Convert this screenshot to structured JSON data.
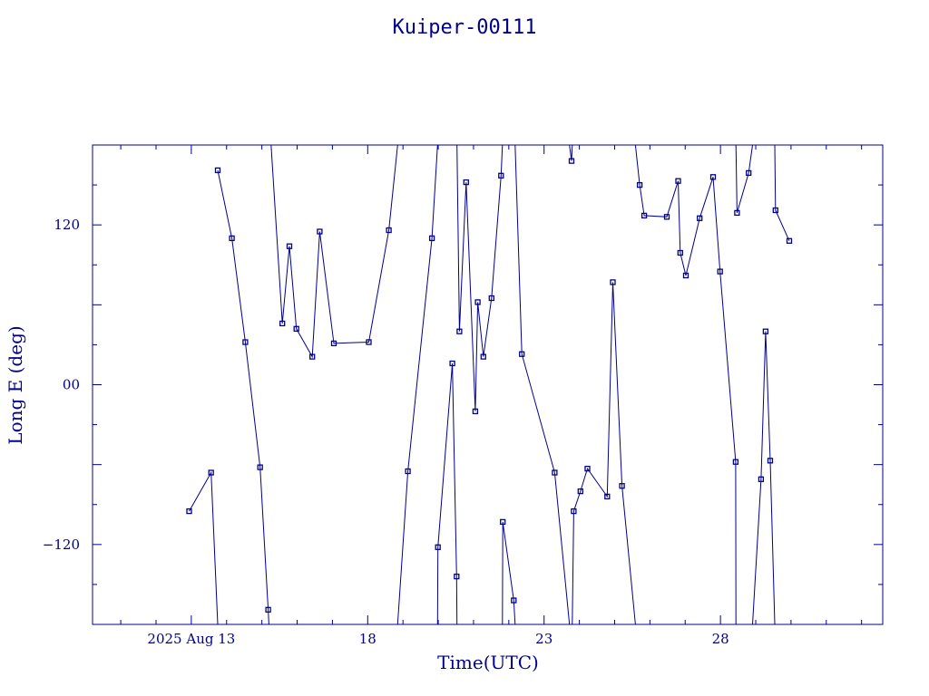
{
  "chart_data": {
    "type": "line",
    "title": "Kuiper-00111",
    "xlabel": "Time(UTC)",
    "ylabel": "Long E (deg)",
    "x_tick_labels": [
      {
        "x": 12.0,
        "label": "2025 Aug 13"
      },
      {
        "x": 17.0,
        "label": "18"
      },
      {
        "x": 22.0,
        "label": "23"
      },
      {
        "x": 27.0,
        "label": "28"
      }
    ],
    "y_tick_labels": [
      {
        "y": 120,
        "label": "120"
      },
      {
        "y": 0,
        "label": "00"
      },
      {
        "y": -120,
        "label": "−120"
      }
    ],
    "x_unit": "days (Aug 2025, UTC)",
    "xlim": [
      9.2,
      31.6
    ],
    "ylim": [
      -180,
      180
    ],
    "grid": false,
    "color": "#00008b",
    "series": [
      {
        "values": [
          [
            11.94,
            -95
          ],
          [
            12.56,
            -66
          ],
          [
            12.75,
            -180
          ],
          null,
          [
            12.75,
            161
          ],
          [
            13.15,
            110
          ],
          [
            13.53,
            32
          ],
          [
            13.95,
            -62
          ],
          [
            14.18,
            -169
          ],
          [
            14.2,
            -180
          ],
          null,
          [
            14.26,
            180
          ],
          [
            14.58,
            46
          ],
          [
            14.78,
            104
          ],
          [
            14.98,
            42
          ],
          [
            15.43,
            21
          ],
          [
            15.64,
            115
          ],
          [
            16.04,
            31
          ],
          [
            17.03,
            32
          ],
          [
            17.6,
            116
          ],
          [
            17.85,
            180
          ],
          null,
          [
            17.85,
            -180
          ],
          [
            18.14,
            -65
          ],
          [
            18.82,
            110
          ],
          [
            18.98,
            180
          ],
          null,
          [
            18.98,
            -180
          ],
          [
            18.99,
            -122
          ],
          [
            19.4,
            16
          ],
          [
            19.52,
            -144
          ],
          [
            19.53,
            -180
          ],
          null,
          [
            19.53,
            180
          ],
          [
            19.6,
            40
          ],
          [
            19.79,
            152
          ],
          [
            20.05,
            -20
          ],
          [
            20.12,
            62
          ],
          [
            20.28,
            21
          ],
          [
            20.51,
            65
          ],
          [
            20.78,
            157
          ],
          [
            20.82,
            180
          ],
          null,
          [
            20.82,
            -180
          ],
          [
            20.83,
            -103
          ],
          [
            21.14,
            -162
          ],
          [
            21.18,
            -180
          ],
          null,
          [
            21.18,
            180
          ],
          [
            21.37,
            23
          ],
          [
            22.3,
            -66
          ],
          [
            22.72,
            -180
          ],
          null,
          [
            22.72,
            180
          ],
          [
            22.78,
            168
          ],
          [
            22.8,
            180
          ],
          null,
          [
            22.8,
            -180
          ],
          [
            22.84,
            -95
          ],
          [
            23.03,
            -80
          ],
          [
            23.23,
            -63
          ],
          [
            23.79,
            -84
          ],
          [
            23.95,
            77
          ],
          [
            24.21,
            -76
          ],
          [
            24.59,
            -180
          ],
          null,
          [
            24.59,
            180
          ],
          [
            24.71,
            150
          ],
          [
            24.84,
            127
          ],
          [
            25.48,
            126
          ],
          [
            25.8,
            153
          ],
          [
            25.86,
            99
          ],
          [
            26.02,
            82
          ],
          [
            26.41,
            125
          ],
          [
            26.79,
            156
          ],
          [
            26.99,
            85
          ],
          [
            27.43,
            -58
          ],
          [
            27.44,
            -180
          ],
          null,
          [
            27.44,
            180
          ],
          [
            27.47,
            129
          ],
          [
            27.8,
            159
          ],
          [
            27.91,
            180
          ],
          null,
          [
            27.91,
            -180
          ],
          [
            28.15,
            -71
          ],
          [
            28.28,
            40
          ],
          [
            28.41,
            -57
          ],
          [
            28.54,
            -180
          ],
          null,
          [
            28.54,
            180
          ],
          [
            28.56,
            131
          ],
          [
            28.95,
            108
          ]
        ]
      }
    ]
  }
}
